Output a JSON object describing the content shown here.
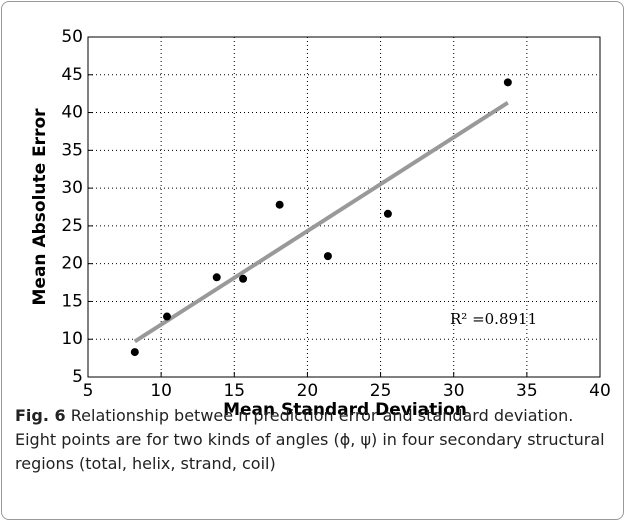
{
  "chart_data": {
    "type": "scatter",
    "xlabel": "Mean Standard Deviation",
    "ylabel": "Mean Absolute Error",
    "series": [
      {
        "color": "#000000",
        "x": [
          8.2,
          10.4,
          13.8,
          15.6,
          18.1,
          21.4,
          25.5,
          33.7
        ],
        "values": [
          8.3,
          13,
          18.2,
          18,
          27.8,
          21,
          26.6,
          44
        ]
      }
    ],
    "fit_line": {
      "color": "#999999",
      "x": [
        8.2,
        33.7
      ],
      "values": [
        9.7,
        41.3
      ]
    },
    "annotation": "R² =0.8911",
    "xlim": [
      5,
      40
    ],
    "xticks": [
      5,
      10,
      15,
      20,
      25,
      30,
      35,
      40
    ],
    "ylim": [
      5,
      50
    ],
    "yticks": [
      5,
      10,
      15,
      20,
      25,
      30,
      35,
      40,
      45,
      50
    ],
    "grid": true
  },
  "caption": {
    "label": "Fig. 6",
    "text": "Relationship betwee n prediction error and standard deviation. Eight points are for two kinds of angles (ϕ, ψ) in four secondary structural regions (total, helix, strand, coil)"
  }
}
